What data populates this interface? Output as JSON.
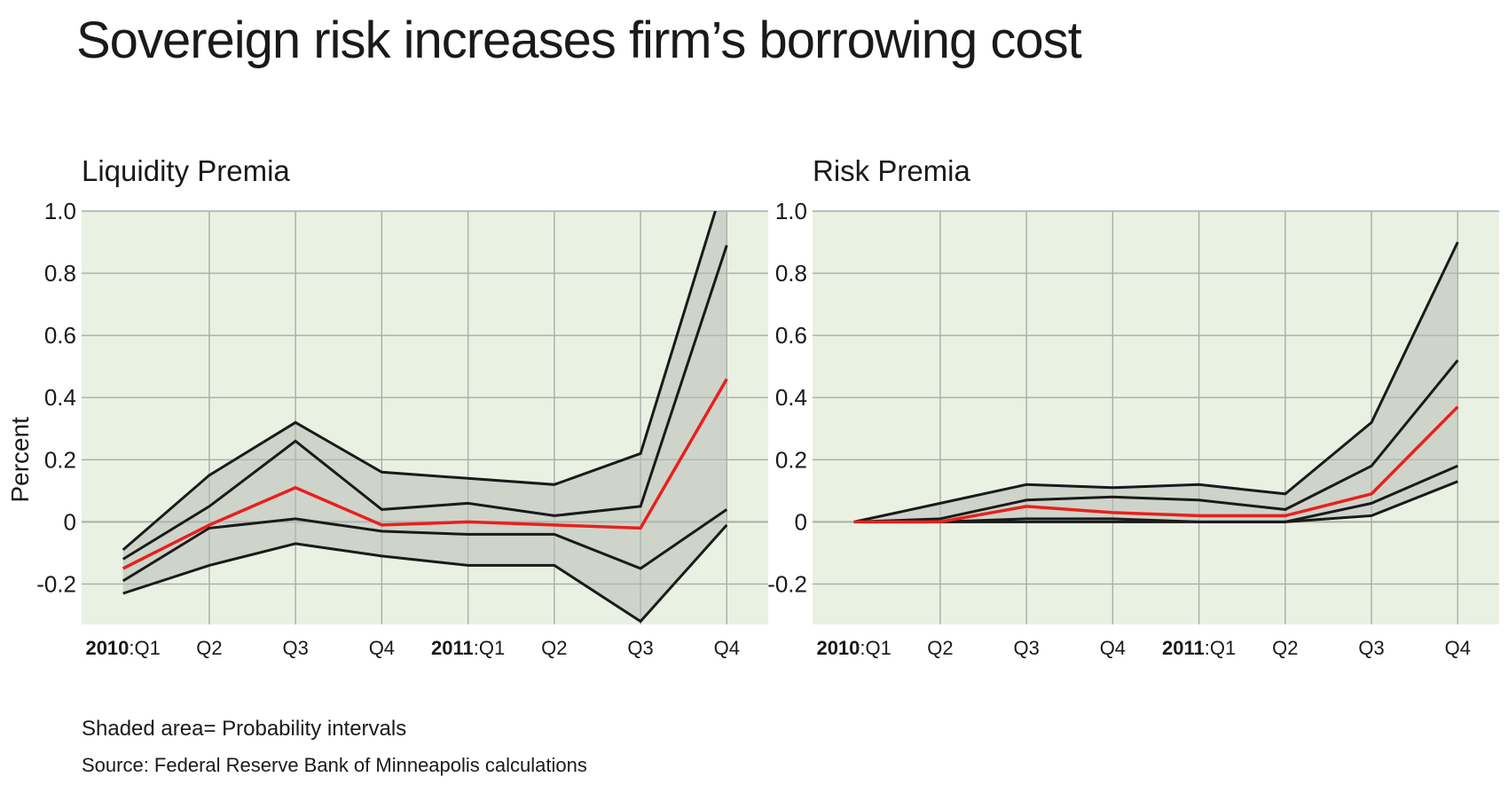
{
  "title": "Sovereign risk increases firm’s borrowing cost",
  "notes": {
    "shaded": "Shaded area= Probability intervals",
    "source": "Source: Federal Reserve Bank of Minneapolis calculations"
  },
  "colors": {
    "plot_bg": "#e9f1e3",
    "band_fill": "#b8bcb7",
    "grid": "#a8aea6",
    "bound_line": "#1a1a1a",
    "median_line": "#e8201c"
  },
  "chart_data": [
    {
      "type": "line",
      "title": "Liquidity Premia",
      "ylabel": "Percent",
      "ylim": [
        -0.33,
        1.0
      ],
      "yticks": [
        1.0,
        0.8,
        0.6,
        0.4,
        0.2,
        0,
        -0.2
      ],
      "ytick_labels": [
        "1.0",
        "0.8",
        "0.6",
        "0.4",
        "0.2",
        "0",
        "-0.2"
      ],
      "x": [
        1,
        2,
        3,
        4,
        5,
        6,
        7,
        8
      ],
      "xlim": [
        0.52,
        8.48
      ],
      "xtick_labels": [
        {
          "year": "2010",
          "q": ":Q1"
        },
        {
          "year": "",
          "q": "Q2"
        },
        {
          "year": "",
          "q": "Q3"
        },
        {
          "year": "",
          "q": "Q4"
        },
        {
          "year": "2011",
          "q": ":Q1"
        },
        {
          "year": "",
          "q": "Q2"
        },
        {
          "year": "",
          "q": "Q3"
        },
        {
          "year": "",
          "q": "Q4"
        }
      ],
      "outer_upper": [
        -0.09,
        0.15,
        0.32,
        0.16,
        0.14,
        0.12,
        0.22,
        1.12
      ],
      "inner_upper": [
        -0.12,
        0.05,
        0.26,
        0.04,
        0.06,
        0.02,
        0.05,
        0.89
      ],
      "median": [
        -0.15,
        -0.01,
        0.11,
        -0.01,
        0.0,
        -0.01,
        -0.02,
        0.46
      ],
      "inner_lower": [
        -0.19,
        -0.02,
        0.01,
        -0.03,
        -0.04,
        -0.04,
        -0.15,
        0.04
      ],
      "outer_lower": [
        -0.23,
        -0.14,
        -0.07,
        -0.11,
        -0.14,
        -0.14,
        -0.32,
        -0.01
      ]
    },
    {
      "type": "line",
      "title": "Risk Premia",
      "ylim": [
        -0.33,
        1.0
      ],
      "yticks": [
        1.0,
        0.8,
        0.6,
        0.4,
        0.2,
        0,
        -0.2
      ],
      "ytick_labels": [
        "1.0",
        "0.8",
        "0.6",
        "0.4",
        "0.2",
        "0",
        "-0.2"
      ],
      "x": [
        1,
        2,
        3,
        4,
        5,
        6,
        7,
        8
      ],
      "xlim": [
        0.52,
        8.48
      ],
      "xtick_labels": [
        {
          "year": "2010",
          "q": ":Q1"
        },
        {
          "year": "",
          "q": "Q2"
        },
        {
          "year": "",
          "q": "Q3"
        },
        {
          "year": "",
          "q": "Q4"
        },
        {
          "year": "2011",
          "q": ":Q1"
        },
        {
          "year": "",
          "q": "Q2"
        },
        {
          "year": "",
          "q": "Q3"
        },
        {
          "year": "",
          "q": "Q4"
        }
      ],
      "outer_upper": [
        0.0,
        0.06,
        0.12,
        0.11,
        0.12,
        0.09,
        0.32,
        0.9
      ],
      "inner_upper": [
        0.0,
        0.01,
        0.07,
        0.08,
        0.07,
        0.04,
        0.18,
        0.52
      ],
      "median": [
        0.0,
        0.0,
        0.05,
        0.03,
        0.02,
        0.02,
        0.09,
        0.37
      ],
      "inner_lower": [
        0.0,
        0.0,
        0.01,
        0.01,
        0.0,
        0.0,
        0.06,
        0.18
      ],
      "outer_lower": [
        0.0,
        0.0,
        0.0,
        0.0,
        0.0,
        0.0,
        0.02,
        0.13
      ]
    }
  ]
}
